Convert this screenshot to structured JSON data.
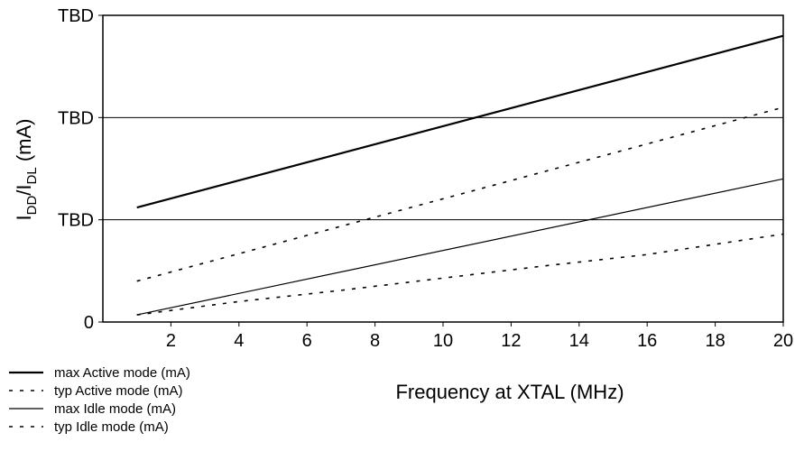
{
  "chart_data": {
    "type": "line",
    "title": "",
    "xlabel": "Frequency at XTAL (MHz)",
    "ylabel": {
      "main": "I",
      "sub1": "DD",
      "sep": "/I",
      "sub2": "DL",
      "tail": " (mA)"
    },
    "xlim": [
      0,
      20
    ],
    "ylim": [
      0,
      3
    ],
    "x_ticks": [
      2,
      4,
      6,
      8,
      10,
      12,
      14,
      16,
      18,
      20
    ],
    "y_ticks": [
      {
        "value": 0,
        "label": "0"
      },
      {
        "value": 1,
        "label": "TBD"
      },
      {
        "value": 2,
        "label": "TBD"
      },
      {
        "value": 3,
        "label": "TBD"
      }
    ],
    "gridlines_y": [
      1,
      2
    ],
    "legend_position": "bottom-left",
    "series": [
      {
        "name": "max Active mode (mA)",
        "style": "solid-thick",
        "x": [
          1,
          20
        ],
        "y": [
          1.12,
          2.8
        ]
      },
      {
        "name": "typ Active mode (mA)",
        "style": "dotted",
        "x": [
          1,
          20
        ],
        "y": [
          0.4,
          2.1
        ]
      },
      {
        "name": "max Idle mode (mA)",
        "style": "solid-thin",
        "x": [
          1,
          20
        ],
        "y": [
          0.07,
          1.4
        ]
      },
      {
        "name": "typ Idle mode (mA)",
        "style": "dotted",
        "x": [
          1,
          4,
          7,
          10,
          13,
          16,
          20
        ],
        "y": [
          0.07,
          0.2,
          0.31,
          0.43,
          0.55,
          0.66,
          0.86
        ]
      }
    ]
  }
}
